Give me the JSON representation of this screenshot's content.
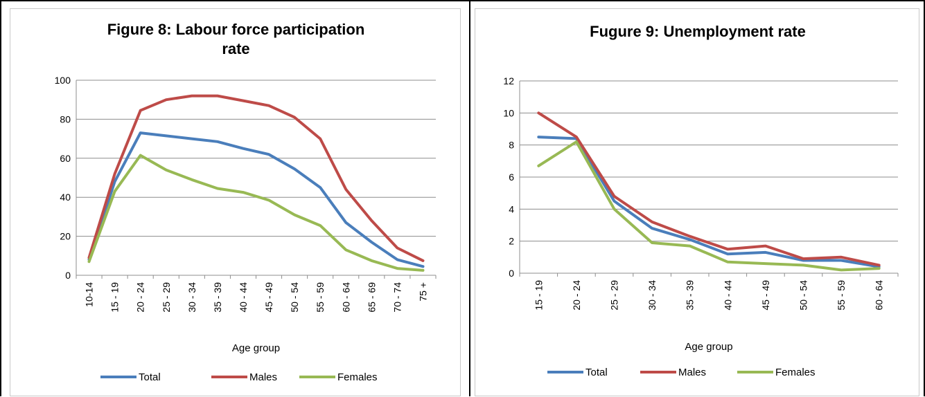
{
  "chart_data": [
    {
      "type": "line",
      "title": "Figure 8: Labour force participation rate",
      "title_lines": [
        "Figure 8: Labour force participation",
        "rate"
      ],
      "xlabel": "Age group",
      "ylabel": "",
      "ylim": [
        0,
        100
      ],
      "yticks": [
        0,
        20,
        40,
        60,
        80,
        100
      ],
      "grid": true,
      "legend": "bottom",
      "categories": [
        "10-14",
        "15 - 19",
        "20 - 24",
        "25 - 29",
        "30 - 34",
        "35 - 39",
        "40 - 44",
        "45 - 49",
        "50 - 54",
        "55 - 59",
        "60 - 64",
        "65 - 69",
        "70 - 74",
        "75 +"
      ],
      "series": [
        {
          "name": "Total",
          "color": "#4a7ebb",
          "values": [
            8,
            48,
            73,
            71.5,
            70,
            68.5,
            65,
            62,
            54.5,
            45,
            27,
            17,
            8,
            4.5
          ]
        },
        {
          "name": "Males",
          "color": "#be4b48",
          "values": [
            9,
            52,
            84.5,
            90,
            92,
            92,
            89.5,
            87,
            81,
            70,
            44,
            28,
            14,
            7.5
          ]
        },
        {
          "name": "Females",
          "color": "#98b954",
          "values": [
            7,
            43,
            61.5,
            54,
            49,
            44.5,
            42.5,
            38.5,
            31,
            25.5,
            13,
            7.5,
            3.5,
            2.5
          ]
        }
      ]
    },
    {
      "type": "line",
      "title": "Fugure 9: Unemployment rate",
      "title_lines": [
        "Fugure 9: Unemployment rate"
      ],
      "xlabel": "Age group",
      "ylabel": "",
      "ylim": [
        0,
        12
      ],
      "yticks": [
        0,
        2,
        4,
        6,
        8,
        10,
        12
      ],
      "grid": true,
      "legend": "bottom",
      "categories": [
        "15 - 19",
        "20 - 24",
        "25 - 29",
        "30 - 34",
        "35 - 39",
        "40 - 44",
        "45 - 49",
        "50 - 54",
        "55 - 59",
        "60 - 64"
      ],
      "series": [
        {
          "name": "Total",
          "color": "#4a7ebb",
          "values": [
            8.5,
            8.4,
            4.5,
            2.8,
            2.1,
            1.2,
            1.3,
            0.8,
            0.8,
            0.4
          ]
        },
        {
          "name": "Males",
          "color": "#be4b48",
          "values": [
            10,
            8.5,
            4.8,
            3.2,
            2.3,
            1.5,
            1.7,
            0.9,
            1.0,
            0.5
          ]
        },
        {
          "name": "Females",
          "color": "#98b954",
          "values": [
            6.7,
            8.2,
            4.0,
            1.9,
            1.7,
            0.7,
            0.6,
            0.5,
            0.2,
            0.3
          ]
        }
      ]
    }
  ]
}
